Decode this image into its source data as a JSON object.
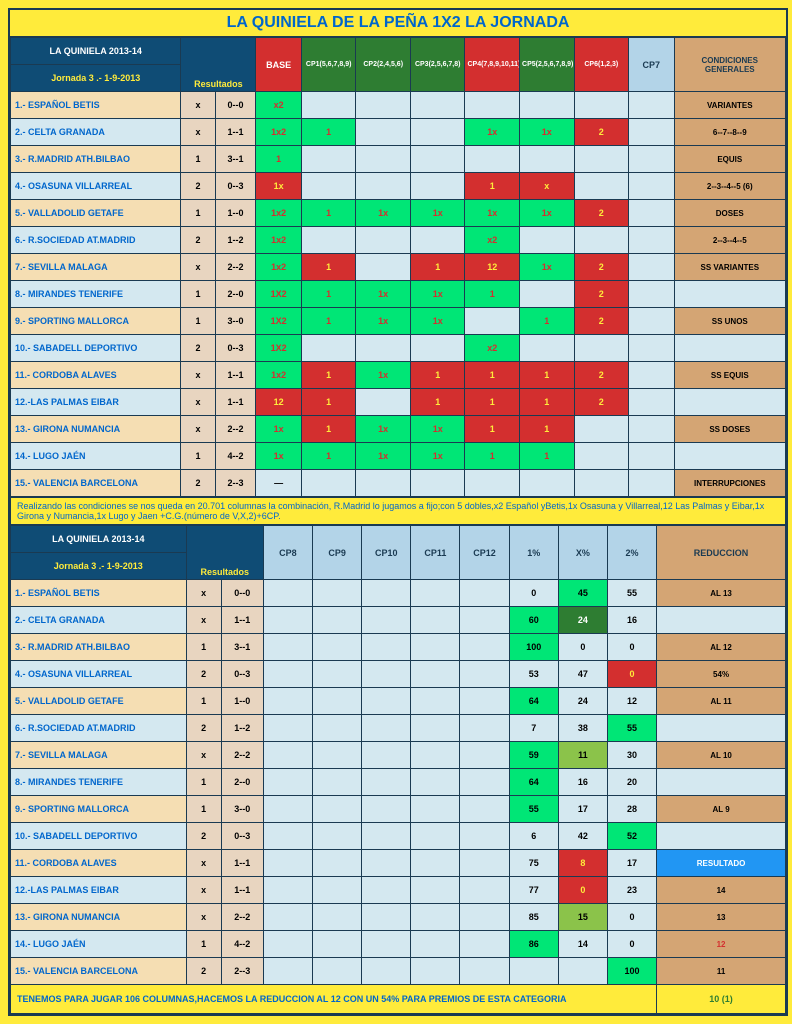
{
  "title": "LA QUINIELA DE LA PEÑA 1X2 LA JORNADA",
  "header1": {
    "league": "LA QUINIELA 2013-14",
    "jornada": "Jornada 3 .- 1-9-2013",
    "resultados": "Resultados",
    "base": "BASE",
    "cp1": "CP1(5,6,7,8,9)",
    "cp2": "CP2(2,4,5,6)",
    "cp3": "CP3(2,5,6,7,8)",
    "cp4": "CP4(7,8,9,10,11)",
    "cp5": "CP5(2,5,6,7,8,9)",
    "cp6": "CP6(1,2,3)",
    "cp7": "CP7",
    "cond": "CONDICIONES GENERALES"
  },
  "matches": [
    {
      "n": "1.- ESPAÑOL BETIS",
      "r": "x",
      "s": "0--0",
      "base": "x2",
      "cp": [
        "",
        "",
        "",
        "",
        "",
        "",
        ""
      ],
      "cond": "VARIANTES"
    },
    {
      "n": "2.- CELTA GRANADA",
      "r": "x",
      "s": "1--1",
      "base": "1x2",
      "cp": [
        "1",
        "",
        "",
        "1x",
        "1x",
        "2",
        ""
      ],
      "cond": "6--7--8--9"
    },
    {
      "n": "3.- R.MADRID ATH.BILBAO",
      "r": "1",
      "s": "3--1",
      "base": "1",
      "cp": [
        "",
        "",
        "",
        "",
        "",
        "",
        ""
      ],
      "cond": "EQUIS"
    },
    {
      "n": "4.- OSASUNA VILLARREAL",
      "r": "2",
      "s": "0--3",
      "base": "1x",
      "cp": [
        "",
        "",
        "",
        "1",
        "x",
        "",
        ""
      ],
      "cond": "2--3--4--5 (6)"
    },
    {
      "n": "5.- VALLADOLID GETAFE",
      "r": "1",
      "s": "1--0",
      "base": "1x2",
      "cp": [
        "1",
        "1x",
        "1x",
        "1x",
        "1x",
        "2",
        ""
      ],
      "cond": "DOSES"
    },
    {
      "n": "6.- R.SOCIEDAD AT.MADRID",
      "r": "2",
      "s": "1--2",
      "base": "1x2",
      "cp": [
        "",
        "",
        "",
        "x2",
        "",
        "",
        ""
      ],
      "cond": "2--3--4--5"
    },
    {
      "n": "7.- SEVILLA MALAGA",
      "r": "x",
      "s": "2--2",
      "base": "1x2",
      "cp": [
        "1",
        "",
        "1",
        "12",
        "1x",
        "2",
        ""
      ],
      "cond": "SS VARIANTES"
    },
    {
      "n": "8.- MIRANDES TENERIFE",
      "r": "1",
      "s": "2--0",
      "base": "1X2",
      "cp": [
        "1",
        "1x",
        "1x",
        "1",
        "",
        "2",
        ""
      ],
      "cond": ""
    },
    {
      "n": "9.- SPORTING MALLORCA",
      "r": "1",
      "s": "3--0",
      "base": "1X2",
      "cp": [
        "1",
        "1x",
        "1x",
        "",
        "1",
        "2",
        ""
      ],
      "cond": "SS UNOS"
    },
    {
      "n": "10.- SABADELL DEPORTIVO",
      "r": "2",
      "s": "0--3",
      "base": "1X2",
      "cp": [
        "",
        "",
        "",
        "x2",
        "",
        "",
        ""
      ],
      "cond": ""
    },
    {
      "n": "11.- CORDOBA ALAVES",
      "r": "x",
      "s": "1--1",
      "base": "1x2",
      "cp": [
        "1",
        "1x",
        "1",
        "1",
        "1",
        "2",
        ""
      ],
      "cond": "SS EQUIS"
    },
    {
      "n": "12.-LAS PALMAS EIBAR",
      "r": "x",
      "s": "1--1",
      "base": "12",
      "cp": [
        "1",
        "",
        "1",
        "1",
        "1",
        "2",
        ""
      ],
      "cond": ""
    },
    {
      "n": "13.- GIRONA NUMANCIA",
      "r": "x",
      "s": "2--2",
      "base": "1x",
      "cp": [
        "1",
        "1x",
        "1x",
        "1",
        "1",
        "",
        ""
      ],
      "cond": "SS DOSES"
    },
    {
      "n": "14.- LUGO JAÉN",
      "r": "1",
      "s": "4--2",
      "base": "1x",
      "cp": [
        "1",
        "1x",
        "1x",
        "1",
        "1",
        "",
        ""
      ],
      "cond": ""
    },
    {
      "n": "15.- VALENCIA BARCELONA",
      "r": "2",
      "s": "2--3",
      "base": "—",
      "cp": [
        "",
        "",
        "",
        "",
        "",
        "",
        ""
      ],
      "cond": "INTERRUPCIONES"
    }
  ],
  "styles": {
    "base": [
      "g",
      "g",
      "g",
      "r",
      "g",
      "g",
      "g",
      "g",
      "g",
      "g",
      "g",
      "r",
      "g",
      "g",
      "lb"
    ],
    "cp": [
      [
        "",
        "",
        "",
        "",
        "",
        "",
        ""
      ],
      [
        "g",
        "",
        "",
        "g",
        "g",
        "r",
        ""
      ],
      [
        "",
        "",
        "",
        "",
        "",
        "",
        ""
      ],
      [
        "",
        "",
        "",
        "r",
        "r",
        "",
        ""
      ],
      [
        "g",
        "g",
        "g",
        "g",
        "g",
        "r",
        ""
      ],
      [
        "",
        "",
        "",
        "g",
        "",
        "",
        ""
      ],
      [
        "r",
        "",
        "r",
        "r",
        "g",
        "r",
        ""
      ],
      [
        "g",
        "g",
        "g",
        "g",
        "",
        "r",
        ""
      ],
      [
        "g",
        "g",
        "g",
        "",
        "g",
        "r",
        ""
      ],
      [
        "",
        "",
        "",
        "g",
        "",
        "",
        ""
      ],
      [
        "r",
        "g",
        "r",
        "r",
        "r",
        "r",
        ""
      ],
      [
        "r",
        "",
        "r",
        "r",
        "r",
        "r",
        ""
      ],
      [
        "r",
        "g",
        "g",
        "r",
        "r",
        "",
        ""
      ],
      [
        "g",
        "g",
        "g",
        "g",
        "g",
        "",
        ""
      ],
      [
        "",
        "",
        "",
        "",
        "",
        "",
        ""
      ]
    ]
  },
  "note1": "Realizando las condiciones se nos queda en 20.701 columnas la combinación, R.Madrid lo jugamos a fijo;con 5 dobles,x2 Español yBetis,1x Osasuna y Villarreal,12 Las Palmas y Eibar,1x Girona y Numancia,1x Lugo y Jaen +C.G.(número de V,X,2)+6CP.",
  "header2": {
    "cp8": "CP8",
    "cp9": "CP9",
    "cp10": "CP10",
    "cp11": "CP11",
    "cp12": "CP12",
    "p1": "1%",
    "px": "X%",
    "p2": "2%",
    "reduc": "REDUCCION"
  },
  "pct": [
    {
      "p1": "0",
      "px": "45",
      "p2": "55",
      "reduc": "AL 13",
      "s": [
        "",
        "pct-g",
        ""
      ]
    },
    {
      "p1": "60",
      "px": "24",
      "p2": "16",
      "reduc": "",
      "s": [
        "pct-g",
        "pct-dg",
        ""
      ]
    },
    {
      "p1": "100",
      "px": "0",
      "p2": "0",
      "reduc": "AL 12",
      "s": [
        "pct-g",
        "",
        ""
      ]
    },
    {
      "p1": "53",
      "px": "47",
      "p2": "0",
      "reduc": "54%",
      "s": [
        "",
        "",
        "pct-r"
      ]
    },
    {
      "p1": "64",
      "px": "24",
      "p2": "12",
      "reduc": "AL 11",
      "s": [
        "pct-g",
        "",
        ""
      ]
    },
    {
      "p1": "7",
      "px": "38",
      "p2": "55",
      "reduc": "",
      "s": [
        "",
        "",
        "pct-g"
      ]
    },
    {
      "p1": "59",
      "px": "11",
      "p2": "30",
      "reduc": "AL 10",
      "s": [
        "pct-g",
        "pct-tn",
        ""
      ]
    },
    {
      "p1": "64",
      "px": "16",
      "p2": "20",
      "reduc": "",
      "s": [
        "pct-g",
        "",
        ""
      ]
    },
    {
      "p1": "55",
      "px": "17",
      "p2": "28",
      "reduc": "AL 9",
      "s": [
        "pct-g",
        "",
        ""
      ]
    },
    {
      "p1": "6",
      "px": "42",
      "p2": "52",
      "reduc": "",
      "s": [
        "",
        "",
        "pct-g"
      ]
    },
    {
      "p1": "75",
      "px": "8",
      "p2": "17",
      "reduc": "RESULTADO",
      "s": [
        "",
        "pct-r",
        ""
      ]
    },
    {
      "p1": "77",
      "px": "0",
      "p2": "23",
      "reduc": "14",
      "s": [
        "",
        "pct-r",
        ""
      ]
    },
    {
      "p1": "85",
      "px": "15",
      "p2": "0",
      "reduc": "13",
      "s": [
        "",
        "pct-tn",
        ""
      ]
    },
    {
      "p1": "86",
      "px": "14",
      "p2": "0",
      "reduc": "12",
      "s": [
        "pct-g",
        "",
        ""
      ]
    },
    {
      "p1": "",
      "px": "",
      "p2": "100",
      "reduc": "11",
      "s": [
        "",
        "",
        "pct-g"
      ]
    }
  ],
  "footer": "TENEMOS PARA JUGAR 106 COLUMNAS,HACEMOS LA REDUCCION AL 12 CON UN 54% PARA PREMIOS DE ESTA CATEGORIA",
  "footerRight": "10 (1)"
}
